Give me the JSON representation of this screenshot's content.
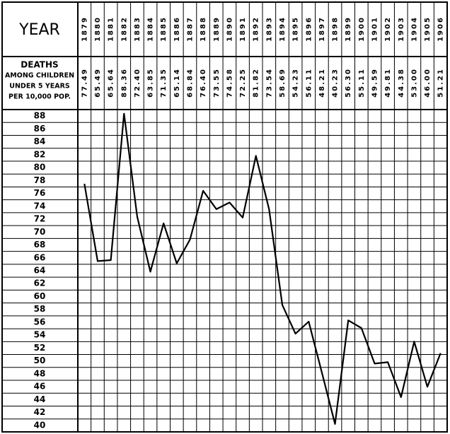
{
  "chart_data": {
    "type": "line",
    "corner_label": "YEAR",
    "row_label": [
      "DEATHS",
      "AMONG CHILDREN",
      "UNDER 5 YEARS",
      "PER 10,000 POP."
    ],
    "categories": [
      "1879",
      "1880",
      "1881",
      "1882",
      "1883",
      "1884",
      "1885",
      "1886",
      "1887",
      "1888",
      "1889",
      "1890",
      "1891",
      "1892",
      "1893",
      "1894",
      "1895",
      "1896",
      "1897",
      "1898",
      "1899",
      "1900",
      "1901",
      "1902",
      "1903",
      "1904",
      "1905",
      "1906"
    ],
    "values": [
      77.49,
      65.49,
      65.64,
      88.36,
      72.4,
      63.85,
      71.35,
      65.14,
      68.84,
      76.4,
      73.55,
      74.58,
      72.25,
      81.82,
      73.54,
      58.69,
      54.23,
      56.11,
      48.21,
      40.23,
      56.3,
      55.11,
      49.59,
      49.81,
      44.38,
      53,
      46,
      51.21
    ],
    "value_labels": [
      "77.49",
      "65.49",
      "65.64",
      "88.36",
      "72.40",
      "63.85",
      "71.35",
      "65.14",
      "68.84",
      "76.40",
      "73.55",
      "74.58",
      "72.25",
      "81.82",
      "73.54",
      "58.69",
      "54.23",
      "56.11",
      "48.21",
      "40.23",
      "56.30",
      "55.11",
      "49.59",
      "49.81",
      "44.38",
      "53.00",
      "46.00",
      "51.21"
    ],
    "color": "#000000",
    "ylim": [
      39,
      89
    ],
    "yticks": [
      40,
      42,
      44,
      46,
      48,
      50,
      52,
      54,
      56,
      58,
      60,
      62,
      64,
      66,
      68,
      70,
      72,
      74,
      76,
      78,
      80,
      82,
      84,
      86,
      88
    ],
    "grid": true
  }
}
